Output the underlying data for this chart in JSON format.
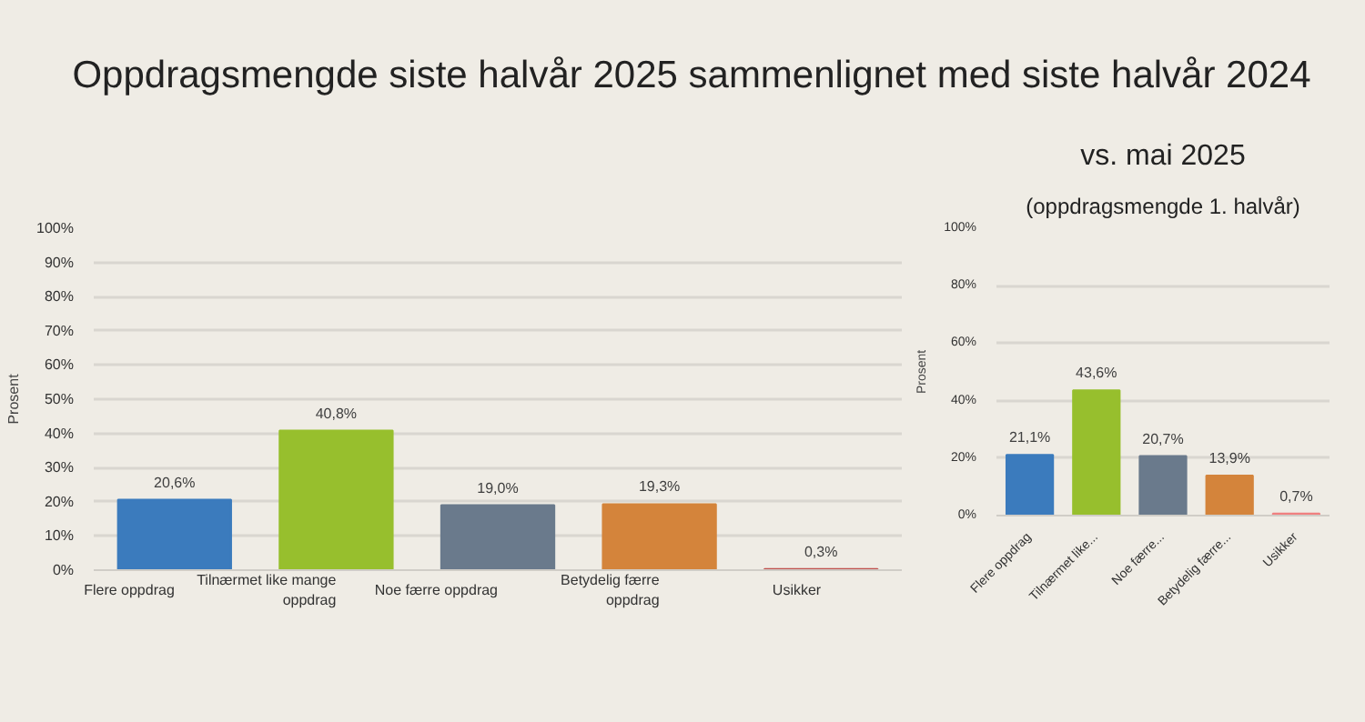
{
  "chart_data": [
    {
      "type": "bar",
      "title": "Oppdragsmengde siste halvår 2025 sammenlignet med siste halvår 2024",
      "ylabel": "Prosent",
      "categories": [
        "Flere oppdrag",
        "Tilnærmet like mange oppdrag",
        "Noe færre oppdrag",
        "Betydelig færre oppdrag",
        "Usikker"
      ],
      "values": [
        20.6,
        40.8,
        19.0,
        19.3,
        0.3
      ],
      "value_labels": [
        "20,6%",
        "40,8%",
        "19,0%",
        "19,3%",
        "0,3%"
      ],
      "colors": [
        "#3b7bbd",
        "#97bf2d",
        "#6a7a8c",
        "#d4843b",
        "#c0504d"
      ],
      "ylim": [
        0,
        100
      ],
      "yticks": [
        {
          "value": 0,
          "label": "0%"
        },
        {
          "value": 10,
          "label": "10%"
        },
        {
          "value": 20,
          "label": "20%"
        },
        {
          "value": 30,
          "label": "30%"
        },
        {
          "value": 40,
          "label": "40%"
        },
        {
          "value": 50,
          "label": "50%"
        },
        {
          "value": 60,
          "label": "60%"
        },
        {
          "value": 70,
          "label": "70%"
        },
        {
          "value": 80,
          "label": "80%"
        },
        {
          "value": 90,
          "label": "90%"
        },
        {
          "value": 100,
          "label": "100%"
        }
      ],
      "grid": "y"
    },
    {
      "type": "bar",
      "title": "vs. mai 2025",
      "subtitle": "(oppdragsmengde 1. halvår)",
      "ylabel": "Prosent",
      "categories": [
        "Flere oppdrag",
        "Tilnærmet like...",
        "Noe færre...",
        "Betydelig færre...",
        "Usikker"
      ],
      "values": [
        21.1,
        43.6,
        20.7,
        13.9,
        0.7
      ],
      "value_labels": [
        "21,1%",
        "43,6%",
        "20,7%",
        "13,9%",
        "0,7%"
      ],
      "colors": [
        "#3b7bbd",
        "#97bf2d",
        "#6a7a8c",
        "#d4843b",
        "#f08080"
      ],
      "ylim": [
        0,
        100
      ],
      "yticks": [
        {
          "value": 0,
          "label": "0%"
        },
        {
          "value": 20,
          "label": "20%"
        },
        {
          "value": 40,
          "label": "40%"
        },
        {
          "value": 60,
          "label": "60%"
        },
        {
          "value": 80,
          "label": "80%"
        },
        {
          "value": 100,
          "label": "100%"
        }
      ],
      "grid": "y"
    }
  ]
}
